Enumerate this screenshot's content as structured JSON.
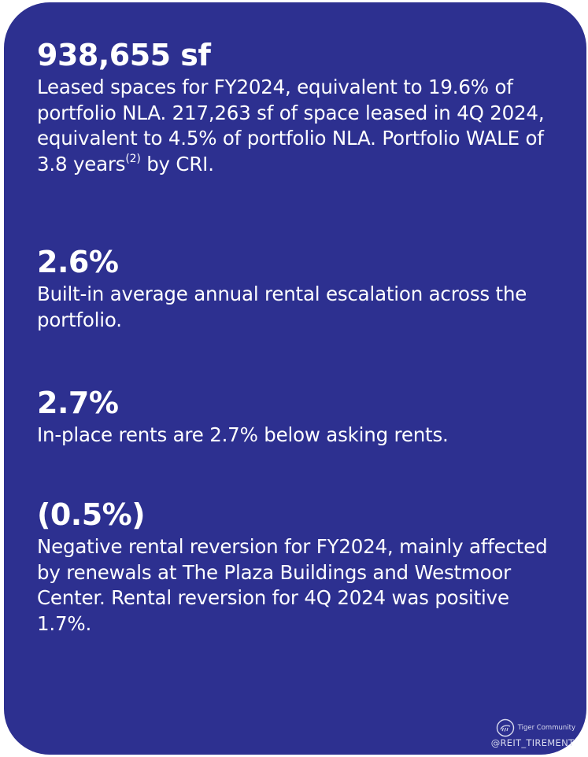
{
  "items": [
    {
      "metric": "938,655 sf",
      "desc_before": "Leased spaces for FY2024, equivalent to 19.6% of portfolio NLA. 217,263 sf of space leased in 4Q 2024, equivalent to 4.5% of portfolio NLA. Portfolio WALE of 3.8 years",
      "desc_sup": "(2)",
      "desc_after": " by CRI."
    },
    {
      "metric": "2.6%",
      "desc": "Built-in average annual rental escalation across the portfolio."
    },
    {
      "metric": "2.7%",
      "desc": "In-place rents are 2.7% below asking rents."
    },
    {
      "metric": "(0.5%)",
      "desc": "Negative rental reversion for  FY2024, mainly affected by renewals at The Plaza Buildings and Westmoor Center. Rental reversion for 4Q 2024 was positive 1.7%."
    }
  ],
  "watermark": {
    "brand": "Tiger Community",
    "handle": "@REIT_TIREMENT"
  },
  "colors": {
    "card_background": "#2d3090",
    "text": "#ffffff"
  }
}
